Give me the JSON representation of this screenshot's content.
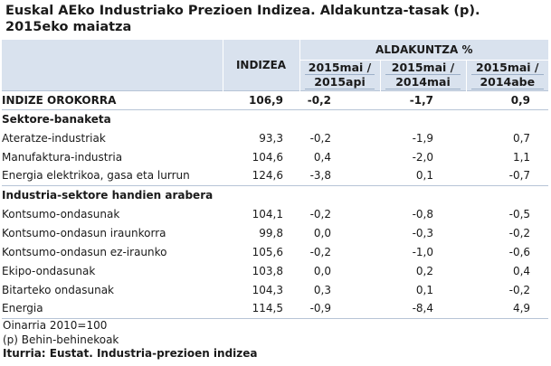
{
  "title_line1": "Euskal AEko Industriako Prezioen Indizea. Aldakuntza-tasak (p).",
  "title_line2": "2015eko maiatza",
  "header": {
    "indizea": "INDIZEA",
    "aldakuntza": "ALDAKUNTZA %",
    "col_a_l1": "2015mai /",
    "col_a_l2": "2015api",
    "col_b_l1": "2015mai /",
    "col_b_l2": "2014mai",
    "col_c_l1": "2015mai /",
    "col_c_l2": "2014abe"
  },
  "rows": [
    {
      "label": "INDIZE OROKORRA",
      "indizea": "106,9",
      "a": "-0,2",
      "b": "-1,7",
      "c": "0,9"
    },
    {
      "label": "Sektore-banaketa",
      "indizea": "",
      "a": "",
      "b": "",
      "c": ""
    },
    {
      "label": "Ateratze-industriak",
      "indizea": "93,3",
      "a": "-0,2",
      "b": "-1,9",
      "c": "0,7"
    },
    {
      "label": "Manufaktura-industria",
      "indizea": "104,6",
      "a": "0,4",
      "b": "-2,0",
      "c": "1,1"
    },
    {
      "label": "Energia elektrikoa, gasa eta lurrun",
      "indizea": "124,6",
      "a": "-3,8",
      "b": "0,1",
      "c": "-0,7"
    },
    {
      "label": "Industria-sektore handien arabera",
      "indizea": "",
      "a": "",
      "b": "",
      "c": ""
    },
    {
      "label": "Kontsumo-ondasunak",
      "indizea": "104,1",
      "a": "-0,2",
      "b": "-0,8",
      "c": "-0,5"
    },
    {
      "label": "Kontsumo-ondasun iraunkorra",
      "indizea": "99,8",
      "a": "0,0",
      "b": "-0,3",
      "c": "-0,2"
    },
    {
      "label": "Kontsumo-ondasun ez-iraunko",
      "indizea": "105,6",
      "a": "-0,2",
      "b": "-1,0",
      "c": "-0,6"
    },
    {
      "label": "Ekipo-ondasunak",
      "indizea": "103,8",
      "a": "0,0",
      "b": "0,2",
      "c": "0,4"
    },
    {
      "label": "Bitarteko ondasunak",
      "indizea": "104,3",
      "a": "0,3",
      "b": "0,1",
      "c": "-0,2"
    },
    {
      "label": "Energia",
      "indizea": "114,5",
      "a": "-0,9",
      "b": "-8,4",
      "c": "4,9"
    }
  ],
  "footer": {
    "base": "Oinarria 2010=100",
    "note": "(p) Behin-behinekoak",
    "source": "Iturria: Eustat. Industria-prezioen indizea"
  }
}
